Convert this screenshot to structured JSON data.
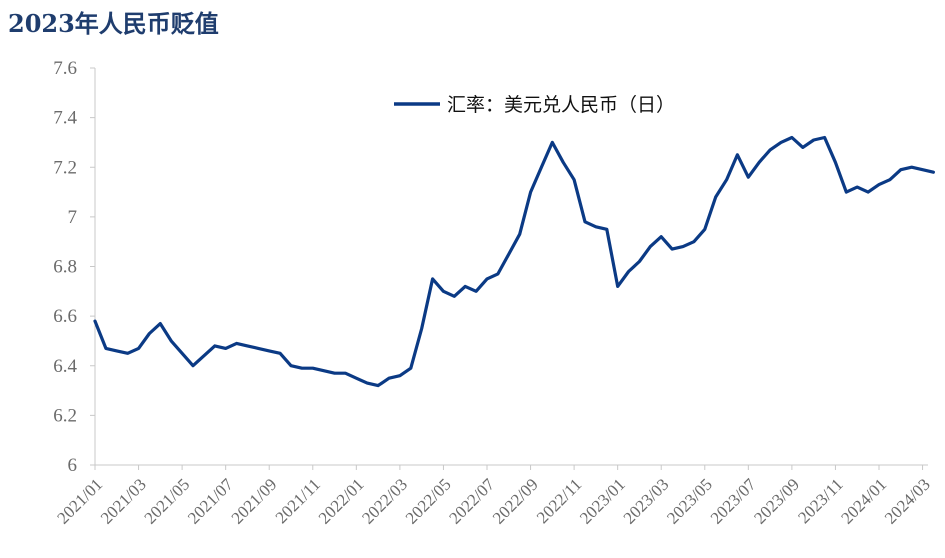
{
  "header": {
    "title": "2023年人民币贬值"
  },
  "colors": {
    "series": "#0b3a85",
    "axis": "#c8c8c8",
    "tick_text": "#6b6b6b",
    "title": "#1f3d6e"
  },
  "chart_data": {
    "type": "line",
    "title": "",
    "xlabel": "",
    "ylabel": "",
    "ylim": [
      6.0,
      7.6
    ],
    "yticks": [
      6,
      6.2,
      6.4,
      6.6,
      6.8,
      7,
      7.2,
      7.4,
      7.6
    ],
    "ytick_labels": [
      "6",
      "6.2",
      "6.4",
      "6.6",
      "6.8",
      "7",
      "7.2",
      "7.4",
      "7.6"
    ],
    "xlim": [
      "2021-01",
      "2024-03"
    ],
    "xtick_labels": [
      "2021/01",
      "2021/03",
      "2021/05",
      "2021/07",
      "2021/09",
      "2021/11",
      "2022/01",
      "2022/03",
      "2022/05",
      "2022/07",
      "2022/09",
      "2022/11",
      "2023/01",
      "2023/03",
      "2023/05",
      "2023/07",
      "2023/09",
      "2023/11",
      "2024/01",
      "2024/03"
    ],
    "grid": false,
    "legend_position": "top-right",
    "series": [
      {
        "name": "汇率：美元兑人民币（日）",
        "x": [
          "2021-01",
          "2021-01.5",
          "2021-02",
          "2021-02.5",
          "2021-03",
          "2021-03.5",
          "2021-04",
          "2021-04.5",
          "2021-05",
          "2021-05.5",
          "2021-06",
          "2021-06.5",
          "2021-07",
          "2021-07.5",
          "2021-08",
          "2021-08.5",
          "2021-09",
          "2021-09.5",
          "2021-10",
          "2021-10.5",
          "2021-11",
          "2021-11.5",
          "2021-12",
          "2021-12.5",
          "2022-01",
          "2022-01.5",
          "2022-02",
          "2022-02.5",
          "2022-03",
          "2022-03.5",
          "2022-04",
          "2022-04.5",
          "2022-05",
          "2022-05.5",
          "2022-06",
          "2022-06.5",
          "2022-07",
          "2022-07.5",
          "2022-08",
          "2022-08.5",
          "2022-09",
          "2022-09.5",
          "2022-10",
          "2022-10.5",
          "2022-11",
          "2022-11.5",
          "2022-12",
          "2022-12.5",
          "2023-01",
          "2023-01.5",
          "2023-02",
          "2023-02.5",
          "2023-03",
          "2023-03.5",
          "2023-04",
          "2023-04.5",
          "2023-05",
          "2023-05.5",
          "2023-06",
          "2023-06.5",
          "2023-07",
          "2023-07.5",
          "2023-08",
          "2023-08.5",
          "2023-09",
          "2023-09.5",
          "2023-10",
          "2023-10.5",
          "2023-11",
          "2023-11.5",
          "2023-12",
          "2023-12.5",
          "2024-01",
          "2024-01.5",
          "2024-02",
          "2024-02.5",
          "2024-03",
          "2024-03.5"
        ],
        "values": [
          6.58,
          6.47,
          6.46,
          6.45,
          6.47,
          6.53,
          6.57,
          6.5,
          6.45,
          6.4,
          6.44,
          6.48,
          6.47,
          6.49,
          6.48,
          6.47,
          6.46,
          6.45,
          6.4,
          6.39,
          6.39,
          6.38,
          6.37,
          6.37,
          6.35,
          6.33,
          6.32,
          6.35,
          6.36,
          6.39,
          6.55,
          6.75,
          6.7,
          6.68,
          6.72,
          6.7,
          6.75,
          6.77,
          6.85,
          6.93,
          7.1,
          7.2,
          7.3,
          7.22,
          7.15,
          6.98,
          6.96,
          6.95,
          6.72,
          6.78,
          6.82,
          6.88,
          6.92,
          6.87,
          6.88,
          6.9,
          6.95,
          7.08,
          7.15,
          7.25,
          7.16,
          7.22,
          7.27,
          7.3,
          7.32,
          7.28,
          7.31,
          7.32,
          7.22,
          7.1,
          7.12,
          7.1,
          7.13,
          7.15,
          7.19,
          7.2,
          7.19,
          7.18
        ]
      }
    ]
  }
}
